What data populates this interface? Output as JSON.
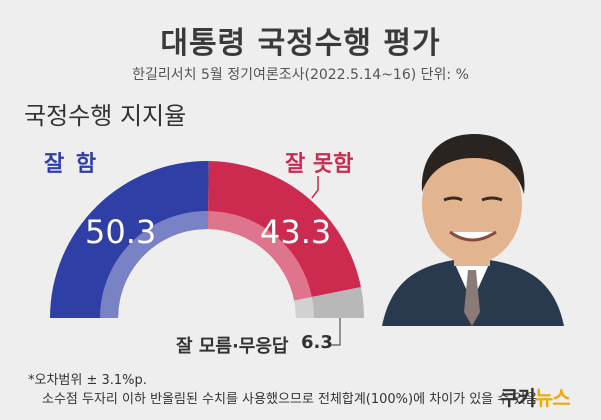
{
  "header": {
    "title": "대통령 국정수행 평가",
    "subtitle": "한길리서치 5월 정기여론조사(2022.5.14~16)  단위: %"
  },
  "section_title": "국정수행 지지율",
  "chart_data": {
    "type": "pie",
    "style": "half-donut",
    "title": "대통령 국정수행 평가",
    "subtitle": "한길리서치 5월 정기여론조사(2022.5.14~16)  단위: %",
    "slices": [
      {
        "label": "잘 함",
        "value": 50.3,
        "color": "#2f3fa6"
      },
      {
        "label": "잘 못함",
        "value": 43.3,
        "color": "#cc2a4e"
      },
      {
        "label": "잘 모름·무응답",
        "value": 6.3,
        "color": "#b8b8b8"
      }
    ],
    "labels": {
      "good": "잘 함",
      "bad": "잘 못함",
      "good_value": "50.3",
      "bad_value": "43.3",
      "other_label": "잘 모름·무응답",
      "other_value": "6.3"
    }
  },
  "footnotes": {
    "line1": "*오차범위 ± 3.1%p.",
    "line2": "소수점 두자리 이하 반올림된 수치를 사용했으므로 전체합계(100%)에 차이가 있을 수 있음"
  },
  "logo": {
    "text_main": "쿠키",
    "text_accent": "뉴스"
  },
  "photo": {
    "icon": "portrait-photo",
    "suit_color": "#2a3a4e",
    "skin_color": "#e2b48f",
    "hair_color": "#2a2420",
    "tie_color": "#8a7a78"
  }
}
